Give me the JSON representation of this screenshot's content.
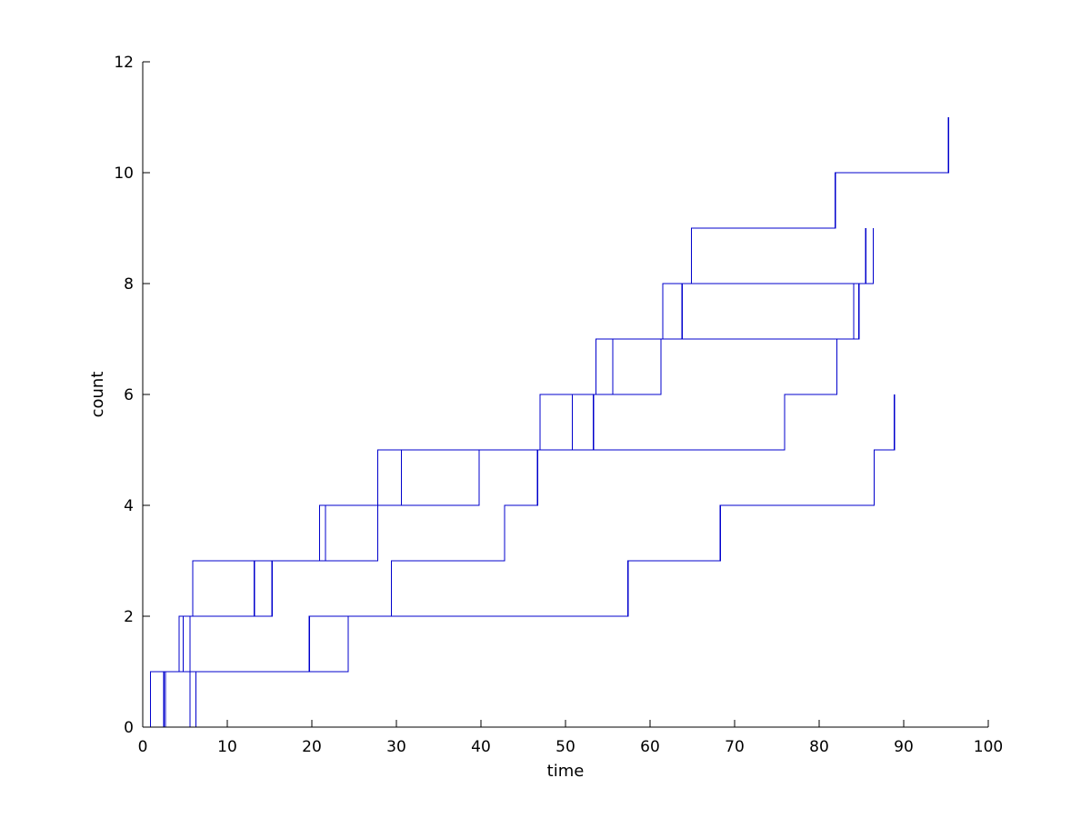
{
  "chart_data": {
    "type": "line",
    "style": "stairs",
    "title": "",
    "xlabel": "time",
    "ylabel": "count",
    "xlim": [
      0,
      100
    ],
    "ylim": [
      0,
      12
    ],
    "xticks": [
      0,
      10,
      20,
      30,
      40,
      50,
      60,
      70,
      80,
      90,
      100
    ],
    "yticks": [
      0,
      2,
      4,
      6,
      8,
      10,
      12
    ],
    "grid": false,
    "legend": "none",
    "line_color": "#0000cc",
    "series": [
      {
        "jump_times": [
          0.9,
          4.8,
          5.9,
          20.9,
          27.8,
          50.8,
          53.6,
          61.5,
          64.9,
          81.9,
          95.3
        ]
      },
      {
        "jump_times": [
          2.5,
          4.3,
          15.3,
          27.8,
          39.8,
          53.3,
          61.3,
          84.1
        ]
      },
      {
        "jump_times": [
          2.7,
          5.6,
          13.2,
          21.6,
          30.6,
          47.0,
          55.6,
          63.8,
          85.5
        ]
      },
      {
        "jump_times": [
          5.6,
          19.7,
          29.4,
          42.8,
          46.7,
          75.9,
          82.1,
          84.7,
          86.4
        ]
      },
      {
        "jump_times": [
          6.3,
          24.3,
          57.4,
          68.3,
          86.5,
          88.9
        ]
      }
    ]
  }
}
